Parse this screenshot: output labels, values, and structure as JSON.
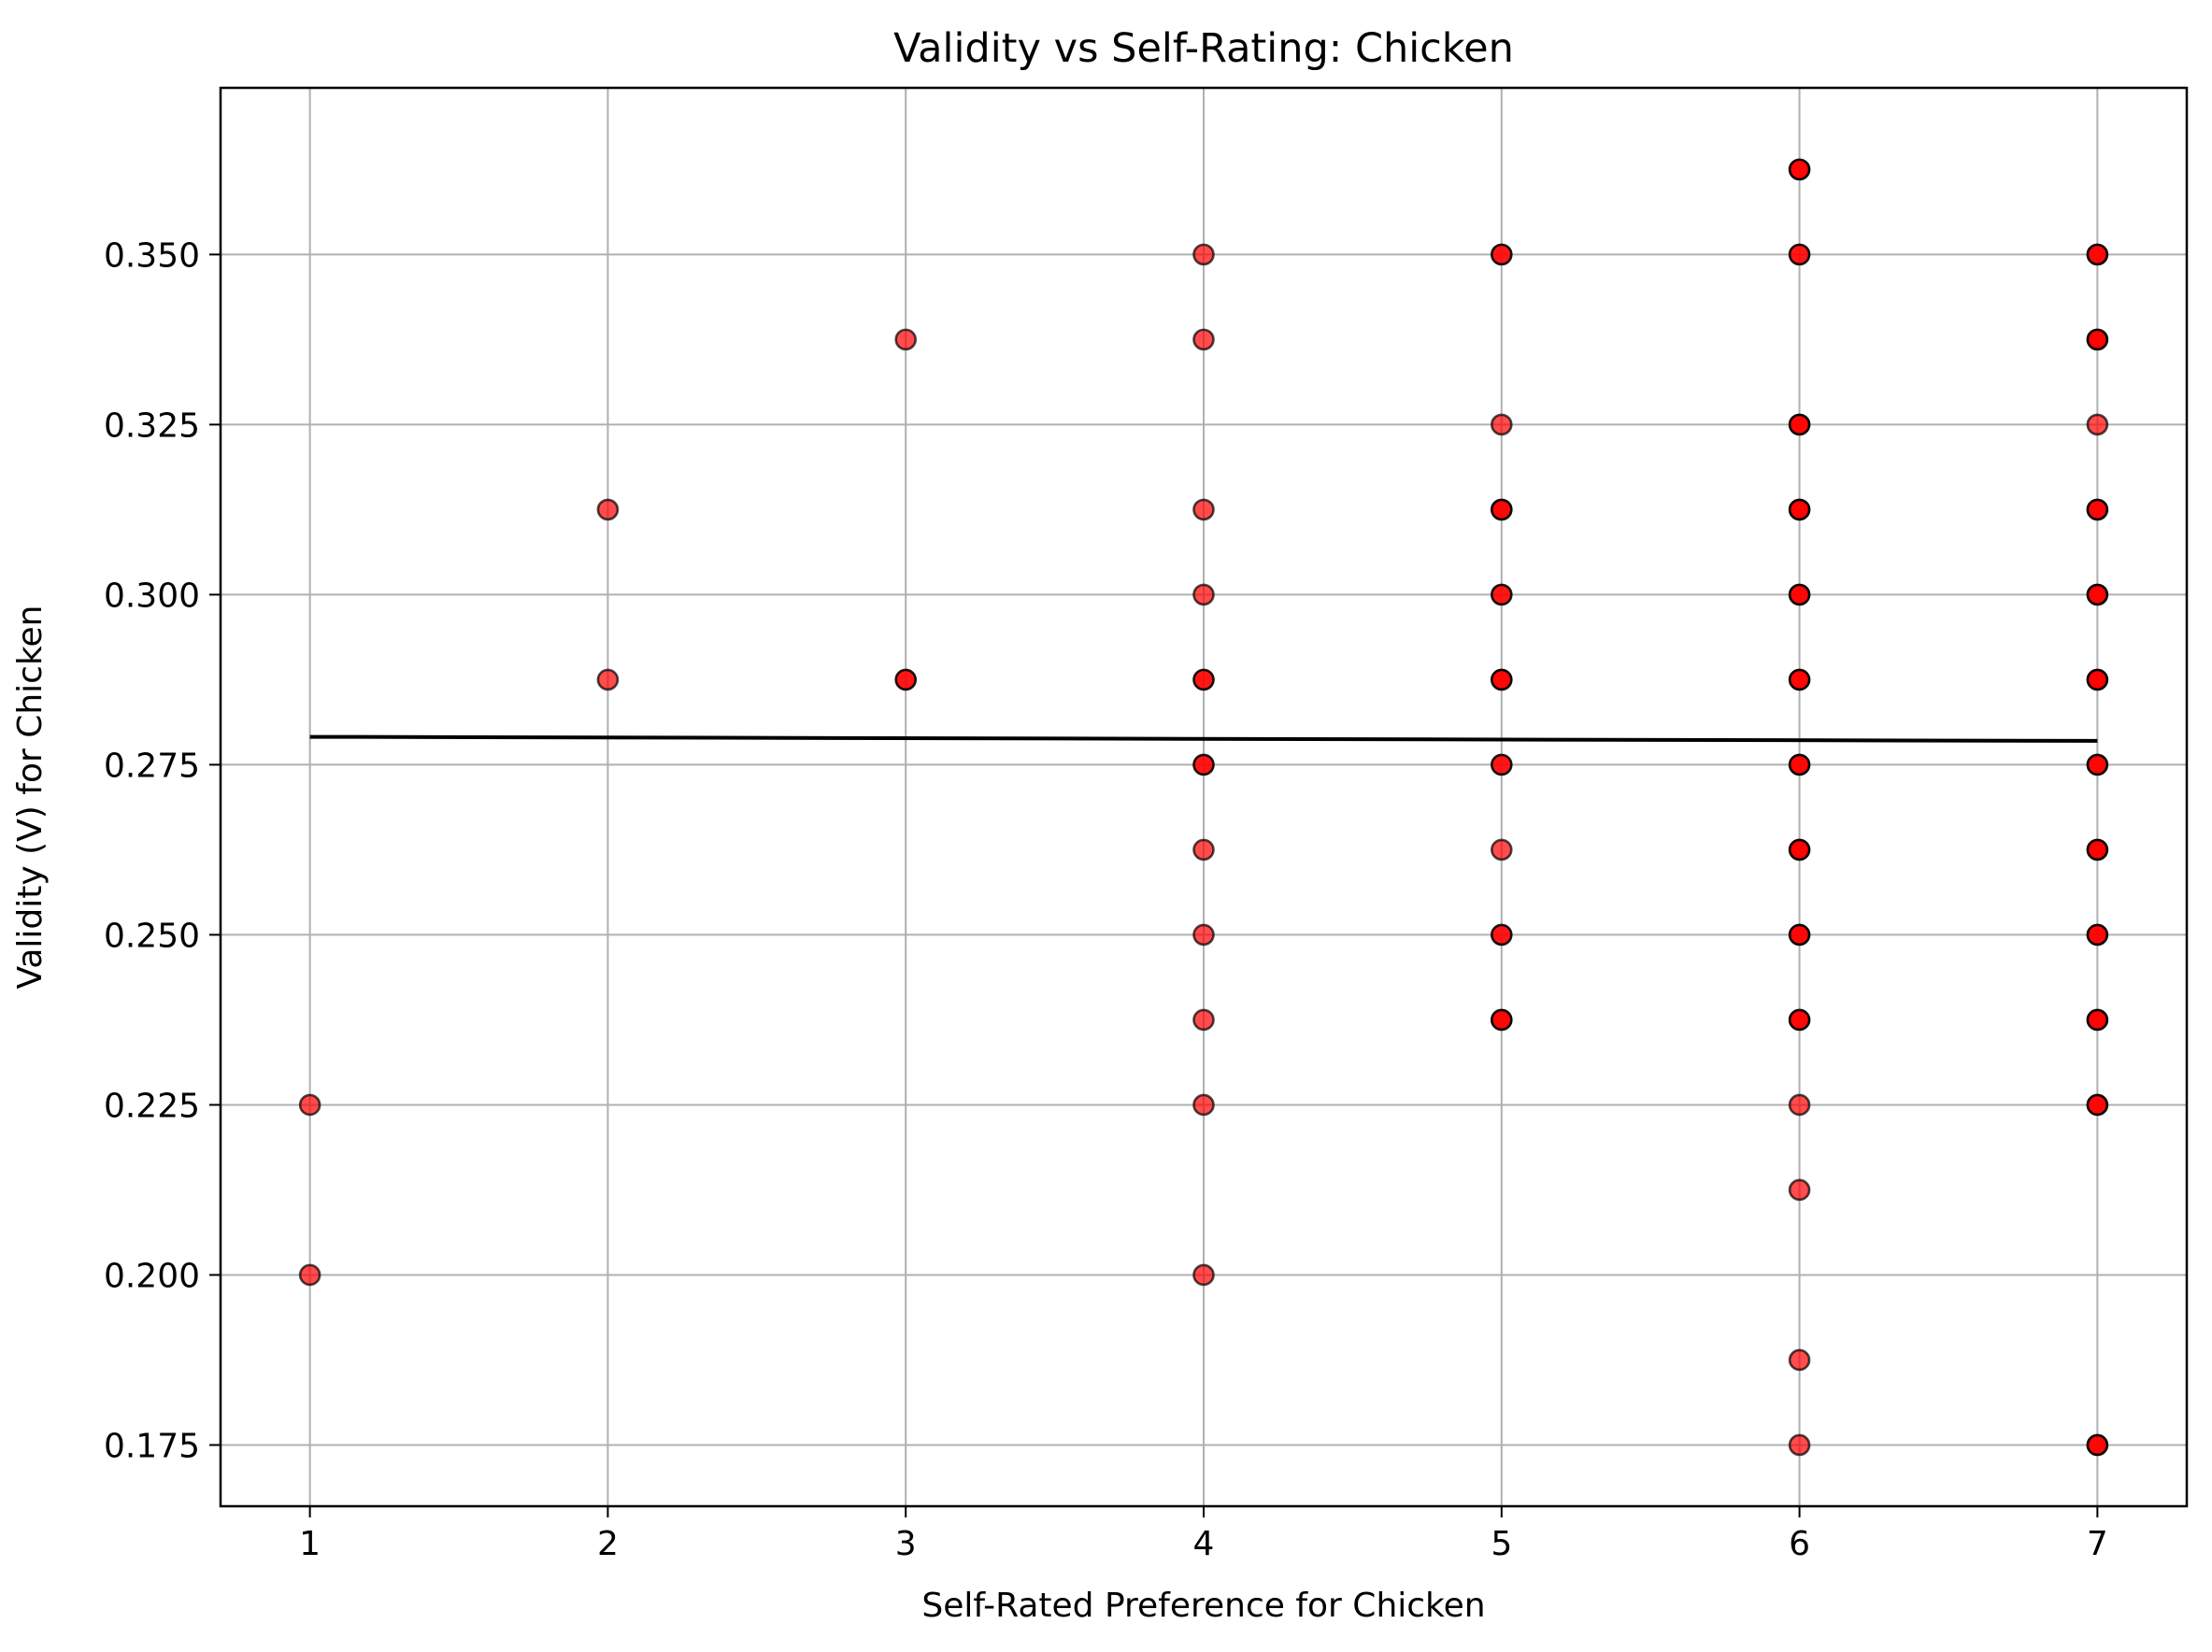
{
  "chart_data": {
    "type": "scatter",
    "title": "Validity vs Self-Rating: Chicken",
    "xlabel": "Self-Rated Preference for Chicken",
    "ylabel": "Validity (V) for Chicken",
    "xlim": [
      0.7,
      7.3
    ],
    "ylim": [
      0.166,
      0.3745
    ],
    "xticks": [
      1,
      2,
      3,
      4,
      5,
      6,
      7
    ],
    "yticks": [
      0.175,
      0.2,
      0.225,
      0.25,
      0.275,
      0.3,
      0.325,
      0.35
    ],
    "ytick_labels": [
      "0.175",
      "0.200",
      "0.225",
      "0.250",
      "0.275",
      "0.300",
      "0.325",
      "0.350"
    ],
    "grid": true,
    "point_color": "#ff0000",
    "point_edge_color": "#000000",
    "trend_color": "#000000",
    "series": [
      {
        "points": [
          {
            "x": 1,
            "y": 0.2,
            "n": 1
          },
          {
            "x": 1,
            "y": 0.225,
            "n": 1
          },
          {
            "x": 2,
            "y": 0.2875,
            "n": 1
          },
          {
            "x": 2,
            "y": 0.3125,
            "n": 1
          },
          {
            "x": 3,
            "y": 0.2875,
            "n": 2
          },
          {
            "x": 3,
            "y": 0.3375,
            "n": 1
          },
          {
            "x": 4,
            "y": 0.2,
            "n": 1
          },
          {
            "x": 4,
            "y": 0.225,
            "n": 1
          },
          {
            "x": 4,
            "y": 0.2375,
            "n": 1
          },
          {
            "x": 4,
            "y": 0.25,
            "n": 1
          },
          {
            "x": 4,
            "y": 0.2625,
            "n": 1
          },
          {
            "x": 4,
            "y": 0.275,
            "n": 2
          },
          {
            "x": 4,
            "y": 0.2875,
            "n": 2
          },
          {
            "x": 4,
            "y": 0.3,
            "n": 1
          },
          {
            "x": 4,
            "y": 0.3125,
            "n": 1
          },
          {
            "x": 4,
            "y": 0.3375,
            "n": 1
          },
          {
            "x": 4,
            "y": 0.35,
            "n": 1
          },
          {
            "x": 5,
            "y": 0.2375,
            "n": 3
          },
          {
            "x": 5,
            "y": 0.25,
            "n": 2
          },
          {
            "x": 5,
            "y": 0.2625,
            "n": 1
          },
          {
            "x": 5,
            "y": 0.275,
            "n": 2
          },
          {
            "x": 5,
            "y": 0.2875,
            "n": 3
          },
          {
            "x": 5,
            "y": 0.3,
            "n": 2
          },
          {
            "x": 5,
            "y": 0.3125,
            "n": 3
          },
          {
            "x": 5,
            "y": 0.325,
            "n": 1
          },
          {
            "x": 5,
            "y": 0.35,
            "n": 2
          },
          {
            "x": 6,
            "y": 0.175,
            "n": 1
          },
          {
            "x": 6,
            "y": 0.1875,
            "n": 1
          },
          {
            "x": 6,
            "y": 0.2125,
            "n": 1
          },
          {
            "x": 6,
            "y": 0.225,
            "n": 1
          },
          {
            "x": 6,
            "y": 0.2375,
            "n": 3
          },
          {
            "x": 6,
            "y": 0.25,
            "n": 3
          },
          {
            "x": 6,
            "y": 0.2625,
            "n": 4
          },
          {
            "x": 6,
            "y": 0.275,
            "n": 3
          },
          {
            "x": 6,
            "y": 0.2875,
            "n": 3
          },
          {
            "x": 6,
            "y": 0.3,
            "n": 3
          },
          {
            "x": 6,
            "y": 0.3125,
            "n": 4
          },
          {
            "x": 6,
            "y": 0.325,
            "n": 3
          },
          {
            "x": 6,
            "y": 0.35,
            "n": 2
          },
          {
            "x": 6,
            "y": 0.3625,
            "n": 3
          },
          {
            "x": 7,
            "y": 0.175,
            "n": 3
          },
          {
            "x": 7,
            "y": 0.225,
            "n": 3
          },
          {
            "x": 7,
            "y": 0.2375,
            "n": 4
          },
          {
            "x": 7,
            "y": 0.25,
            "n": 3
          },
          {
            "x": 7,
            "y": 0.2625,
            "n": 4
          },
          {
            "x": 7,
            "y": 0.275,
            "n": 3
          },
          {
            "x": 7,
            "y": 0.2875,
            "n": 4
          },
          {
            "x": 7,
            "y": 0.3,
            "n": 4
          },
          {
            "x": 7,
            "y": 0.3125,
            "n": 3
          },
          {
            "x": 7,
            "y": 0.325,
            "n": 1
          },
          {
            "x": 7,
            "y": 0.3375,
            "n": 4
          },
          {
            "x": 7,
            "y": 0.35,
            "n": 3
          }
        ]
      }
    ],
    "trend_line": {
      "x": [
        1,
        7
      ],
      "y": [
        0.2791,
        0.2785
      ]
    }
  }
}
